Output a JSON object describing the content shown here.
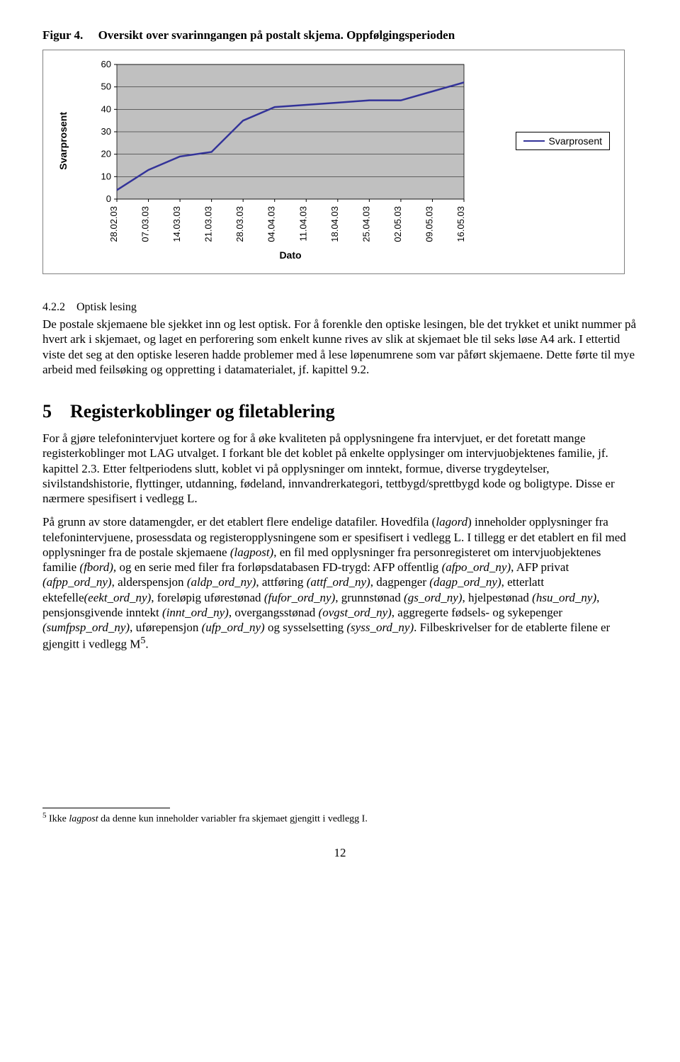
{
  "figure": {
    "label": "Figur 4.",
    "caption": "Oversikt over svarinngangen på postalt skjema. Oppfølgingsperioden"
  },
  "chart": {
    "type": "line",
    "y_title": "Svarprosent",
    "x_title": "Dato",
    "legend_label": "Svarprosent",
    "line_color": "#333399",
    "line_width": 2.5,
    "plot_bg": "#c0c0c0",
    "gridline_color": "#000000",
    "border_color": "#808080",
    "ylim": [
      0,
      60
    ],
    "ytick_step": 10,
    "yticks": [
      0,
      10,
      20,
      30,
      40,
      50,
      60
    ],
    "categories": [
      "28.02.03",
      "07.03.03",
      "14.03.03",
      "21.03.03",
      "28.03.03",
      "04.04.03",
      "11.04.03",
      "18.04.03",
      "25.04.03",
      "02.05.03",
      "09.05.03",
      "16.05.03"
    ],
    "values": [
      4,
      13,
      19,
      21,
      35,
      41,
      42,
      43,
      44,
      44,
      48,
      52
    ],
    "tick_fontsize": 13,
    "title_fontsize": 14
  },
  "sec422": {
    "num": "4.2.2",
    "title": "Optisk lesing",
    "p1_a": "De postale skjemaene ble sjekket inn og lest optisk. For å forenkle den optiske lesingen, ble det trykket et unikt nummer på hvert ark i skjemaet, og laget en perforering som enkelt kunne rives av slik at skjemaet ble til seks løse A4 ark. I ettertid viste det seg at den optiske leseren hadde problemer med å lese løpenumrene som var påført skjemaene. Dette førte til mye arbeid med feilsøking og oppretting i datamaterialet, jf. kapittel 9.2."
  },
  "sec5": {
    "num": "5",
    "title": "Registerkoblinger og filetablering",
    "p1": "For å gjøre telefonintervjuet kortere og for å øke kvaliteten på opplysningene fra intervjuet, er det foretatt mange registerkoblinger mot LAG utvalget. I forkant ble det koblet på enkelte opplysinger om intervjuobjektenes familie, jf. kapittel 2.3. Etter feltperiodens slutt, koblet vi på opplysninger om inntekt, formue, diverse trygdeytelser, sivilstandshistorie, flyttinger, utdanning, fødeland, innvandrerkategori, tettbygd/sprettbygd kode og boligtype. Disse er nærmere spesifisert i vedlegg L.",
    "p2_parts": [
      {
        "t": "På grunn av store datamengder, er det etablert flere endelige datafiler. Hovedfila ("
      },
      {
        "t": "lagord",
        "i": true
      },
      {
        "t": ") inneholder opplysninger fra telefonintervjuene, prosessdata og registeropplysningene som er spesifisert i vedlegg L. I tillegg er det etablert en fil med opplysninger fra de postale skjemaene "
      },
      {
        "t": "(lagpost)",
        "i": true
      },
      {
        "t": ", en fil med opplysninger fra personregisteret om intervjuobjektenes familie "
      },
      {
        "t": "(fbord),",
        "i": true
      },
      {
        "t": " og en serie med filer fra forløpsdatabasen FD-trygd: AFP offentlig "
      },
      {
        "t": "(afpo_ord_ny)",
        "i": true
      },
      {
        "t": ", AFP privat "
      },
      {
        "t": "(afpp_ord_ny)",
        "i": true
      },
      {
        "t": ", alderspensjon "
      },
      {
        "t": "(aldp_ord_ny)",
        "i": true
      },
      {
        "t": ", attføring "
      },
      {
        "t": "(attf_ord_ny)",
        "i": true
      },
      {
        "t": ", dagpenger "
      },
      {
        "t": "(dagp_ord_ny)",
        "i": true
      },
      {
        "t": ", etterlatt ektefelle"
      },
      {
        "t": "(eekt_ord_ny)",
        "i": true
      },
      {
        "t": ", foreløpig uførestønad "
      },
      {
        "t": "(fufor_ord_ny)",
        "i": true
      },
      {
        "t": ", grunnstønad "
      },
      {
        "t": "(gs_ord_ny)",
        "i": true
      },
      {
        "t": ", hjelpestønad "
      },
      {
        "t": "(hsu_ord_ny)",
        "i": true
      },
      {
        "t": ", pensjonsgivende inntekt "
      },
      {
        "t": "(innt_ord_ny)",
        "i": true
      },
      {
        "t": ", overgangsstønad "
      },
      {
        "t": "(ovgst_ord_ny)",
        "i": true
      },
      {
        "t": ", aggregerte fødsels- og sykepenger "
      },
      {
        "t": "(sumfpsp_ord_ny)",
        "i": true
      },
      {
        "t": ", uførepensjon "
      },
      {
        "t": "(ufp_ord_ny)",
        "i": true
      },
      {
        "t": " og sysselsetting "
      },
      {
        "t": "(syss_ord_ny)",
        "i": true
      },
      {
        "t": ". Filbeskrivelser for de etablerte filene er gjengitt i vedlegg M"
      }
    ],
    "p2_sup": "5",
    "p2_end": "."
  },
  "footnote": {
    "num": "5",
    "text_a": " Ikke ",
    "text_i": "lagpost",
    "text_b": " da denne kun inneholder variabler fra skjemaet gjengitt i vedlegg I."
  },
  "page_number": "12"
}
